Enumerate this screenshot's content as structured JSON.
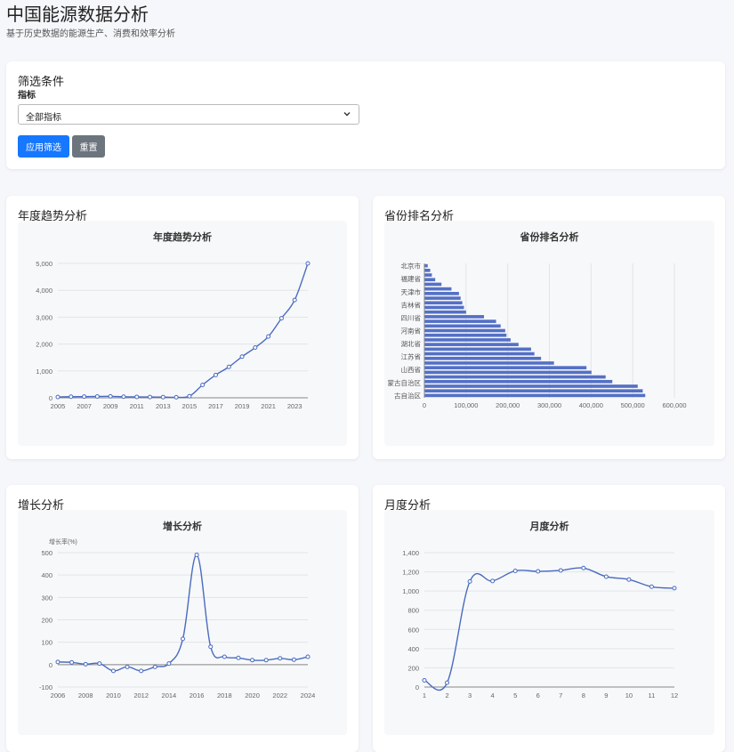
{
  "header": {
    "title": "中国能源数据分析",
    "subtitle": "基于历史数据的能源生产、消费和效率分析"
  },
  "filters": {
    "title": "筛选条件",
    "indicator_label": "指标",
    "indicator_value": "全部指标",
    "apply_label": "应用筛选",
    "reset_label": "重置"
  },
  "cards": {
    "annual_title": "年度趋势分析",
    "province_title": "省份排名分析",
    "growth_title": "增长分析",
    "monthly_title": "月度分析"
  },
  "icons": {
    "select": "chevron-down-icon"
  },
  "colors": {
    "series": "#4a6bbf",
    "bar": "#5470c6",
    "apply": "#1677ff",
    "reset": "#6c757d"
  },
  "chart_data": [
    {
      "id": "annual",
      "type": "line",
      "title": "年度趋势分析",
      "x": [
        2005,
        2006,
        2007,
        2008,
        2009,
        2010,
        2011,
        2012,
        2013,
        2014,
        2015,
        2016,
        2017,
        2018,
        2019,
        2020,
        2021,
        2022,
        2023,
        2024
      ],
      "x_ticks": [
        "2005",
        "2007",
        "2009",
        "2011",
        "2013",
        "2015",
        "2017",
        "2019",
        "2021",
        "2023"
      ],
      "values": [
        30,
        40,
        45,
        50,
        55,
        40,
        35,
        30,
        25,
        20,
        60,
        480,
        850,
        1150,
        1530,
        1870,
        2280,
        2960,
        3640,
        5000
      ],
      "ylim": [
        0,
        5000
      ],
      "y_ticks": [
        0,
        1000,
        2000,
        3000,
        4000,
        5000
      ],
      "y_tick_labels": [
        "0",
        "1,000",
        "2,000",
        "3,000",
        "4,000",
        "5,000"
      ]
    },
    {
      "id": "province",
      "type": "bar",
      "orientation": "horizontal",
      "title": "省份排名分析",
      "category_labels": [
        "北京市",
        "福建省",
        "天津市",
        "吉林省",
        "四川省",
        "河南省",
        "湖北省",
        "江苏省",
        "山西省",
        "蒙古自治区",
        "古自治区"
      ],
      "values": [
        8000,
        14000,
        18000,
        26000,
        41000,
        65000,
        83000,
        87000,
        91000,
        95000,
        100000,
        143000,
        172000,
        183000,
        194000,
        197000,
        207000,
        226000,
        256000,
        264000,
        280000,
        311000,
        389000,
        401000,
        435000,
        451000,
        512000,
        524000,
        530000
      ],
      "xlim": [
        0,
        600000
      ],
      "x_ticks": [
        0,
        100000,
        200000,
        300000,
        400000,
        500000,
        600000
      ],
      "x_tick_labels": [
        "0",
        "100,000",
        "200,000",
        "300,000",
        "400,000",
        "500,000",
        "600,000"
      ]
    },
    {
      "id": "growth",
      "type": "line",
      "title": "增长分析",
      "ylabel": "增长率(%)",
      "x": [
        2006,
        2007,
        2008,
        2009,
        2010,
        2011,
        2012,
        2013,
        2014,
        2015,
        2016,
        2017,
        2018,
        2019,
        2020,
        2021,
        2022,
        2023,
        2024
      ],
      "x_ticks": [
        "2006",
        "2008",
        "2010",
        "2012",
        "2014",
        "2016",
        "2018",
        "2020",
        "2022",
        "2024"
      ],
      "values": [
        12,
        10,
        2,
        5,
        -28,
        -10,
        -28,
        -10,
        5,
        115,
        490,
        80,
        35,
        30,
        20,
        20,
        28,
        22,
        35
      ],
      "ylim": [
        -100,
        500
      ],
      "y_ticks": [
        -100,
        0,
        100,
        200,
        300,
        400,
        500
      ],
      "y_tick_labels": [
        "-100",
        "0",
        "100",
        "200",
        "300",
        "400",
        "500"
      ]
    },
    {
      "id": "monthly",
      "type": "line",
      "title": "月度分析",
      "x": [
        1,
        2,
        3,
        4,
        5,
        6,
        7,
        8,
        9,
        10,
        11,
        12
      ],
      "x_ticks": [
        "1",
        "2",
        "3",
        "4",
        "5",
        "6",
        "7",
        "8",
        "9",
        "10",
        "11",
        "12"
      ],
      "values": [
        70,
        45,
        1100,
        1105,
        1210,
        1205,
        1215,
        1240,
        1150,
        1120,
        1045,
        1030
      ],
      "ylim": [
        0,
        1400
      ],
      "y_ticks": [
        0,
        200,
        400,
        600,
        800,
        1000,
        1200,
        1400
      ],
      "y_tick_labels": [
        "0",
        "200",
        "400",
        "600",
        "800",
        "1,000",
        "1,200",
        "1,400"
      ]
    }
  ]
}
